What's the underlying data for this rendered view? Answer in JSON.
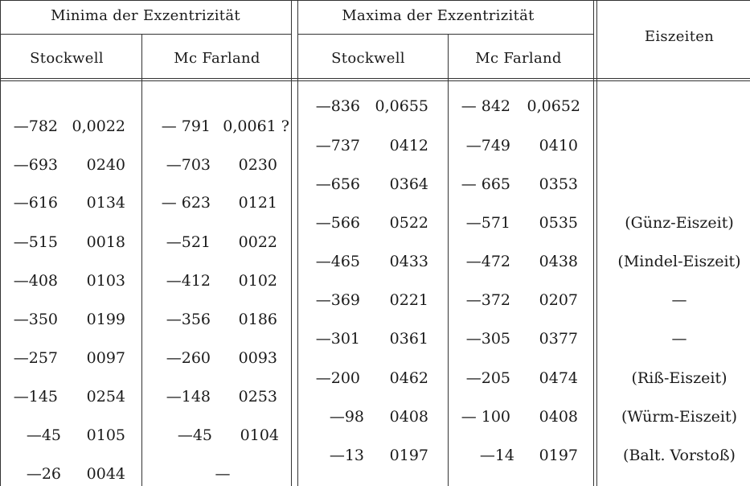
{
  "header": {
    "minima_title": "Minima der Exzentrizität",
    "maxima_title": "Maxima der Exzentrizität",
    "eiszeiten_title": "Eiszeiten",
    "stockwell_label": "Stockwell",
    "mcfarland_label": "Mc Farland"
  },
  "minima": [
    {
      "sy": "—782",
      "sv": "0,0022",
      "my": "— 791",
      "mv": "0,0061 ?"
    },
    {
      "sy": "—693",
      "sv": "0240",
      "my": "—703",
      "mv": "0230"
    },
    {
      "sy": "—616",
      "sv": "0134",
      "my": "— 623",
      "mv": "0121"
    },
    {
      "sy": "—515",
      "sv": "0018",
      "my": "—521",
      "mv": "0022"
    },
    {
      "sy": "—408",
      "sv": "0103",
      "my": "—412",
      "mv": "0102"
    },
    {
      "sy": "—350",
      "sv": "0199",
      "my": "—356",
      "mv": "0186"
    },
    {
      "sy": "—257",
      "sv": "0097",
      "my": "—260",
      "mv": "0093"
    },
    {
      "sy": "—145",
      "sv": "0254",
      "my": "—148",
      "mv": "0253"
    },
    {
      "sy": "—45",
      "sv": "0105",
      "my": "—45",
      "mv": "0104"
    },
    {
      "sy": "—26",
      "sv": "0044",
      "my": "—",
      "mv": ""
    }
  ],
  "maxima": [
    {
      "sy": "—836",
      "sv": "0,0655",
      "my": "— 842",
      "mv": "0,0652",
      "ez": ""
    },
    {
      "sy": "—737",
      "sv": "0412",
      "my": "—749",
      "mv": "0410",
      "ez": ""
    },
    {
      "sy": "—656",
      "sv": "0364",
      "my": "— 665",
      "mv": "0353",
      "ez": ""
    },
    {
      "sy": "—566",
      "sv": "0522",
      "my": "—571",
      "mv": "0535",
      "ez": "(Günz-Eiszeit)"
    },
    {
      "sy": "—465",
      "sv": "0433",
      "my": "—472",
      "mv": "0438",
      "ez": "(Mindel-Eiszeit)"
    },
    {
      "sy": "—369",
      "sv": "0221",
      "my": "—372",
      "mv": "0207",
      "ez": "—"
    },
    {
      "sy": "—301",
      "sv": "0361",
      "my": "—305",
      "mv": "0377",
      "ez": "—"
    },
    {
      "sy": "—200",
      "sv": "0462",
      "my": "—205",
      "mv": "0474",
      "ez": "(Riß-Eiszeit)"
    },
    {
      "sy": "—98",
      "sv": "0408",
      "my": "— 100",
      "mv": "0408",
      "ez": "(Würm-Eiszeit)"
    },
    {
      "sy": "—13",
      "sv": "0197",
      "my": "—14",
      "mv": "0197",
      "ez": "(Balt. Vorstoß)"
    }
  ]
}
